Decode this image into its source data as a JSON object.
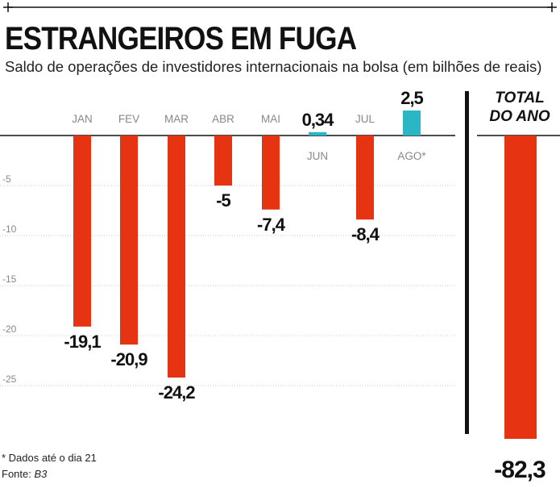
{
  "header": {
    "title": "ESTRANGEIROS EM FUGA",
    "subtitle": "Saldo de operações de investidores internacionais na bolsa (em bilhões de reais)"
  },
  "footer": {
    "footnote": "* Dados até o dia 21",
    "source_prefix": "Fonte: ",
    "source_name": "B3"
  },
  "colors": {
    "negative": "#e63312",
    "positive": "#2bb6c6",
    "grid": "#cccccc",
    "axis": "#111111"
  },
  "chart_data": {
    "type": "bar",
    "title": "ESTRANGEIROS EM FUGA",
    "subtitle": "Saldo de operações de investidores internacionais na bolsa (em bilhões de reais)",
    "categories": [
      "JAN",
      "FEV",
      "MAR",
      "ABR",
      "MAI",
      "JUN",
      "JUL",
      "AGO*"
    ],
    "values": [
      -19.1,
      -20.9,
      -24.2,
      -5,
      -7.4,
      0.34,
      -8.4,
      2.5
    ],
    "value_labels": [
      "-19,1",
      "-20,9",
      "-24,2",
      "-5",
      "-7,4",
      "0,34",
      "-8,4",
      "2,5"
    ],
    "yticks": [
      -5,
      -10,
      -15,
      -20,
      -25
    ],
    "ylim": [
      -30,
      3
    ],
    "grid": true,
    "total": {
      "label_line1": "TOTAL",
      "label_line2": "DO ANO",
      "value": -82.3,
      "value_label": "-82,3"
    }
  }
}
